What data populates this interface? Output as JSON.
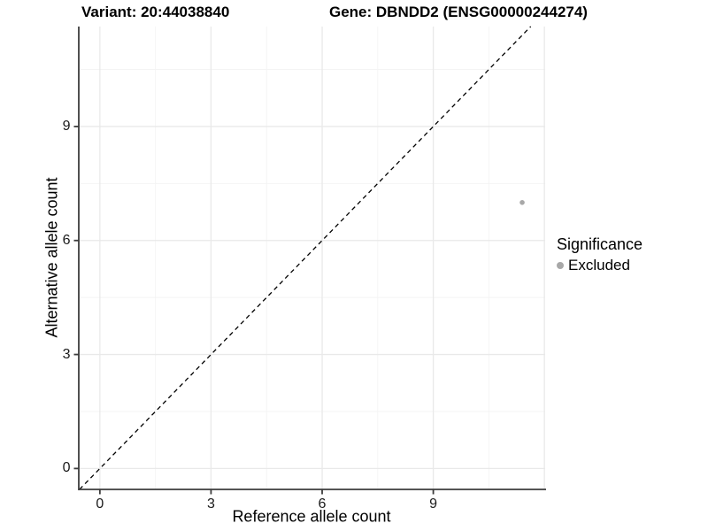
{
  "titles": {
    "variant": "Variant: 20:44038840",
    "gene": "Gene: DBNDD2 (ENSG00000244274)"
  },
  "legend": {
    "title": "Significance",
    "items": [
      {
        "label": "Excluded",
        "color": "#a8a8a8"
      }
    ]
  },
  "axes": {
    "x": {
      "label": "Reference allele count"
    },
    "y": {
      "label": "Alternative allele count"
    }
  },
  "chart_data": {
    "type": "scatter",
    "title": "Variant: 20:44038840  |  Gene: DBNDD2 (ENSG00000244274)",
    "xlabel": "Reference allele count",
    "ylabel": "Alternative allele count",
    "xlim": [
      -0.57,
      12.02
    ],
    "ylim": [
      -0.55,
      11.63
    ],
    "x_ticks": [
      0,
      3,
      6,
      9
    ],
    "y_ticks": [
      0,
      3,
      6,
      9
    ],
    "x_major_gridlines": [
      0,
      3,
      6,
      9,
      12
    ],
    "x_minor_gridlines": [
      1.5,
      4.5,
      7.5,
      10.5
    ],
    "y_major_gridlines": [
      0,
      3,
      6,
      9
    ],
    "y_minor_gridlines": [
      1.5,
      4.5,
      7.5,
      10.5
    ],
    "grid": true,
    "legend_position": "right",
    "legend_title": "Significance",
    "reference_line": {
      "type": "identity",
      "slope": 1,
      "intercept": 0,
      "style": "dashed",
      "color": "#000000"
    },
    "series": [
      {
        "name": "Excluded",
        "color": "#a8a8a8",
        "points": [
          {
            "x": 11.4,
            "y": 7.0
          }
        ]
      }
    ]
  },
  "colors": {
    "point": "#a8a8a8",
    "grid_major": "#e9e9e9",
    "grid_minor": "#f4f4f4",
    "axis": "#3c3c3c",
    "text": "#000000",
    "background": "#ffffff"
  }
}
